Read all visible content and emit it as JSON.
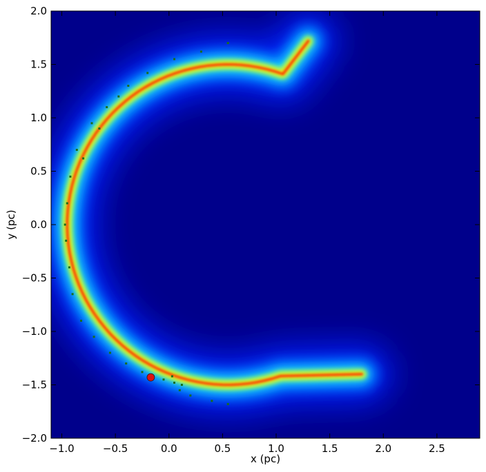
{
  "chart_data": {
    "type": "heatmap",
    "title": "",
    "xlabel": "x (pc)",
    "ylabel": "y (pc)",
    "xlim": [
      -1.1,
      2.9
    ],
    "ylim": [
      -2.0,
      2.0
    ],
    "x_ticks": [
      -1.0,
      -0.5,
      0.0,
      0.5,
      1.0,
      1.5,
      2.0,
      2.5
    ],
    "x_tick_labels": [
      "−1.0",
      "−0.5",
      "0.0",
      "0.5",
      "1.0",
      "1.5",
      "2.0",
      "2.5"
    ],
    "y_ticks": [
      -2.0,
      -1.5,
      -1.0,
      -0.5,
      0.0,
      0.5,
      1.0,
      1.5,
      2.0
    ],
    "y_tick_labels": [
      "−2.0",
      "−1.5",
      "−1.0",
      "−0.5",
      "0.0",
      "0.5",
      "1.0",
      "1.5",
      "2.0"
    ],
    "colormap": "jet",
    "background_color": "#00008b",
    "grid": false,
    "arc": {
      "center": [
        0.55,
        0.0
      ],
      "radius": 1.5,
      "start_angle_deg": 70,
      "end_angle_deg": 290,
      "upper_tip": [
        1.3,
        1.72
      ],
      "lower_tip": [
        1.8,
        -1.4
      ],
      "ridge_color": "#ff2200"
    },
    "particles": {
      "color": "#1a6e1a",
      "points": [
        [
          -0.95,
          0.2
        ],
        [
          -0.97,
          0.0
        ],
        [
          -0.96,
          -0.15
        ],
        [
          -0.93,
          -0.4
        ],
        [
          -0.9,
          -0.65
        ],
        [
          -0.82,
          -0.9
        ],
        [
          -0.7,
          -1.05
        ],
        [
          -0.55,
          -1.2
        ],
        [
          -0.4,
          -1.3
        ],
        [
          -0.25,
          -1.38
        ],
        [
          -0.05,
          -1.45
        ],
        [
          0.05,
          -1.48
        ],
        [
          0.1,
          -1.55
        ],
        [
          0.2,
          -1.6
        ],
        [
          0.4,
          -1.65
        ],
        [
          0.55,
          -1.68
        ],
        [
          0.03,
          -1.42
        ],
        [
          0.12,
          -1.5
        ],
        [
          -0.92,
          0.45
        ],
        [
          -0.86,
          0.7
        ],
        [
          -0.72,
          0.95
        ],
        [
          -0.58,
          1.1
        ],
        [
          -0.38,
          1.3
        ],
        [
          -0.2,
          1.42
        ],
        [
          0.05,
          1.55
        ],
        [
          0.3,
          1.62
        ],
        [
          0.55,
          1.7
        ],
        [
          -0.65,
          0.9
        ],
        [
          -0.8,
          0.62
        ],
        [
          -0.47,
          1.2
        ]
      ]
    },
    "marker": {
      "x": -0.17,
      "y": -1.43,
      "color": "#dd1111"
    }
  }
}
